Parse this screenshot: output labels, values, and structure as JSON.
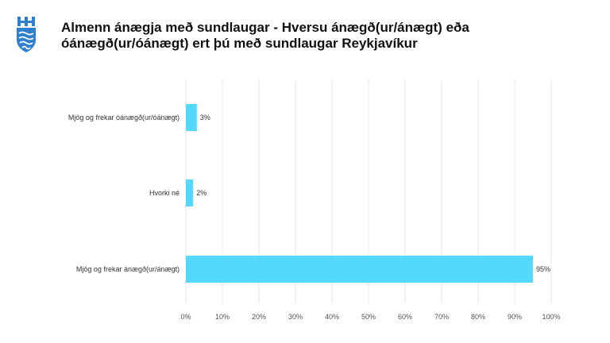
{
  "header": {
    "title_line1": "Almenn ánægja með sundlaugar - Hversu ánægð(ur/ánægt) eða",
    "title_line2": "óánægð(ur/óánægt) ert þú með sundlaugar Reykjavíkur"
  },
  "colors": {
    "bar": "#55d9fb",
    "logo": "#2e7fd0",
    "grid": "#e6e6e6"
  },
  "icons": {
    "logo": "reykjavik-city-logo"
  },
  "chart_data": {
    "type": "bar",
    "orientation": "horizontal",
    "categories": [
      "Mjög og frekar óánægð(ur/óánægt)",
      "Hvorki né",
      "Mjög og frekar ánægð(ur/ánægt)"
    ],
    "values": [
      3,
      2,
      95
    ],
    "value_labels": [
      "3%",
      "2%",
      "95%"
    ],
    "xlim": [
      0,
      100
    ],
    "ticks": [
      0,
      10,
      20,
      30,
      40,
      50,
      60,
      70,
      80,
      90,
      100
    ],
    "tick_labels": [
      "0%",
      "10%",
      "20%",
      "30%",
      "40%",
      "50%",
      "60%",
      "70%",
      "80%",
      "90%",
      "100%"
    ],
    "grid": true,
    "legend": "none"
  }
}
